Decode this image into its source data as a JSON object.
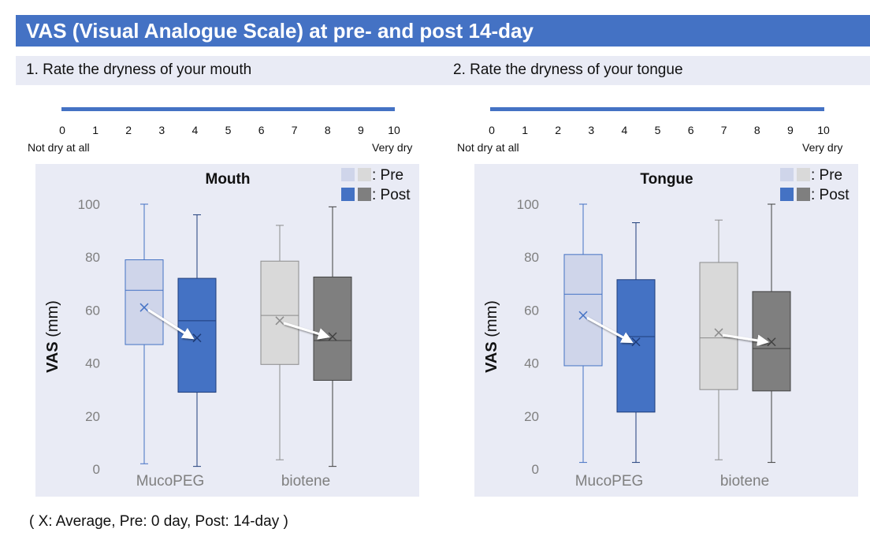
{
  "title": "VAS (Visual Analogue Scale) at pre- and post 14-day",
  "questions": [
    {
      "label": "1. Rate the dryness of your mouth"
    },
    {
      "label": "2. Rate the dryness of your tongue"
    }
  ],
  "scale": {
    "ticks": [
      "0",
      "1",
      "2",
      "3",
      "4",
      "5",
      "6",
      "7",
      "8",
      "9",
      "10"
    ],
    "low_anchor": "Not dry at all",
    "high_anchor": "Very dry"
  },
  "legend": {
    "pre": ": Pre",
    "post": ": Post"
  },
  "footnote": "( X: Average, Pre: 0 day, Post: 14-day )",
  "colors": {
    "banner": "#4472c4",
    "pre_blue_fill": "#cfd5ea",
    "pre_blue_stroke": "#4472c4",
    "post_blue_fill": "#4472c4",
    "post_blue_stroke": "#1f3d7a",
    "pre_gray_fill": "#d9d9d9",
    "pre_gray_stroke": "#8c8c8c",
    "post_gray_fill": "#7f7f7f",
    "post_gray_stroke": "#404040"
  },
  "chart_data": [
    {
      "type": "box",
      "title": "Mouth",
      "ylabel": "VAS (mm)",
      "ylim": [
        0,
        100
      ],
      "yticks": [
        0,
        20,
        40,
        60,
        80,
        100
      ],
      "categories": [
        "MucoPEG",
        "biotene"
      ],
      "series": [
        {
          "name": "MucoPEG Pre",
          "group": "MucoPEG",
          "phase": "pre",
          "color": "blue",
          "min": 2,
          "q1": 47,
          "median": 67.5,
          "q3": 79,
          "max": 100,
          "mean": 61
        },
        {
          "name": "MucoPEG Post",
          "group": "MucoPEG",
          "phase": "post",
          "color": "blue",
          "min": 1,
          "q1": 29,
          "median": 56,
          "q3": 72,
          "max": 96,
          "mean": 49.5
        },
        {
          "name": "biotene Pre",
          "group": "biotene",
          "phase": "pre",
          "color": "gray",
          "min": 3.5,
          "q1": 39.5,
          "median": 58,
          "q3": 78.5,
          "max": 92,
          "mean": 56
        },
        {
          "name": "biotene Post",
          "group": "biotene",
          "phase": "post",
          "color": "gray",
          "min": 1,
          "q1": 33.5,
          "median": 48.5,
          "q3": 72.5,
          "max": 99,
          "mean": 50
        }
      ]
    },
    {
      "type": "box",
      "title": "Tongue",
      "ylabel": "VAS (mm)",
      "ylim": [
        0,
        100
      ],
      "yticks": [
        0,
        20,
        40,
        60,
        80,
        100
      ],
      "categories": [
        "MucoPEG",
        "biotene"
      ],
      "series": [
        {
          "name": "MucoPEG Pre",
          "group": "MucoPEG",
          "phase": "pre",
          "color": "blue",
          "min": 2.5,
          "q1": 39,
          "median": 66,
          "q3": 81,
          "max": 100,
          "mean": 58
        },
        {
          "name": "MucoPEG Post",
          "group": "MucoPEG",
          "phase": "post",
          "color": "blue",
          "min": 2.5,
          "q1": 21.5,
          "median": 50,
          "q3": 71.5,
          "max": 93,
          "mean": 48
        },
        {
          "name": "biotene Pre",
          "group": "biotene",
          "phase": "pre",
          "color": "gray",
          "min": 3.5,
          "q1": 30,
          "median": 49.5,
          "q3": 78,
          "max": 94,
          "mean": 51.5
        },
        {
          "name": "biotene Post",
          "group": "biotene",
          "phase": "post",
          "color": "gray",
          "min": 2.5,
          "q1": 29.5,
          "median": 45.5,
          "q3": 67,
          "max": 100,
          "mean": 48
        }
      ]
    }
  ]
}
